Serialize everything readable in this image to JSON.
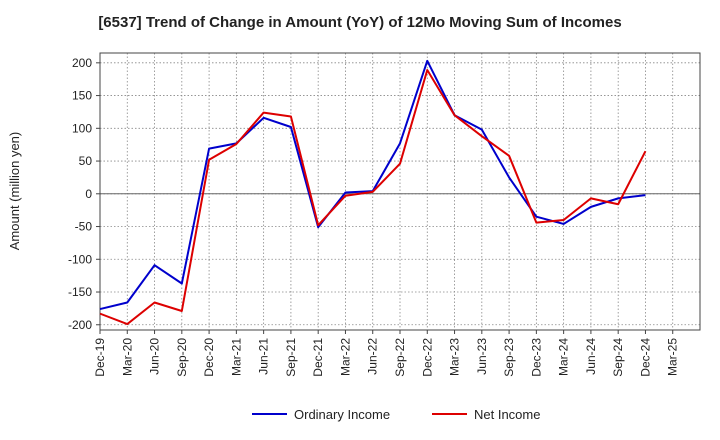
{
  "chart_data": {
    "type": "line",
    "title": "[6537]  Trend of Change in Amount (YoY) of 12Mo Moving Sum of Incomes",
    "xlabel": "",
    "ylabel": "Amount (million yen)",
    "categories": [
      "Dec-19",
      "Mar-20",
      "Jun-20",
      "Sep-20",
      "Dec-20",
      "Mar-21",
      "Jun-21",
      "Sep-21",
      "Dec-21",
      "Mar-22",
      "Jun-22",
      "Sep-22",
      "Dec-22",
      "Mar-23",
      "Jun-23",
      "Sep-23",
      "Dec-23",
      "Mar-24",
      "Jun-24",
      "Sep-24",
      "Dec-24",
      "Mar-25"
    ],
    "yticks": [
      200,
      150,
      100,
      50,
      0,
      -50,
      -100,
      -150,
      -200
    ],
    "ylim": [
      -208,
      215
    ],
    "grid": true,
    "legend_position": "bottom",
    "series": [
      {
        "name": "Ordinary Income",
        "color": "#0000cc",
        "values": [
          -176,
          -166,
          -109,
          -137,
          69,
          77,
          116,
          102,
          -51,
          2,
          4,
          77,
          203,
          120,
          98,
          25,
          -35,
          -46,
          -20,
          -7,
          -2,
          null
        ]
      },
      {
        "name": "Net Income",
        "color": "#dd0000",
        "values": [
          -183,
          -199,
          -166,
          -179,
          52,
          76,
          124,
          118,
          -48,
          -3,
          3,
          46,
          189,
          120,
          88,
          58,
          -44,
          -40,
          -7,
          -16,
          65,
          null
        ]
      }
    ]
  }
}
